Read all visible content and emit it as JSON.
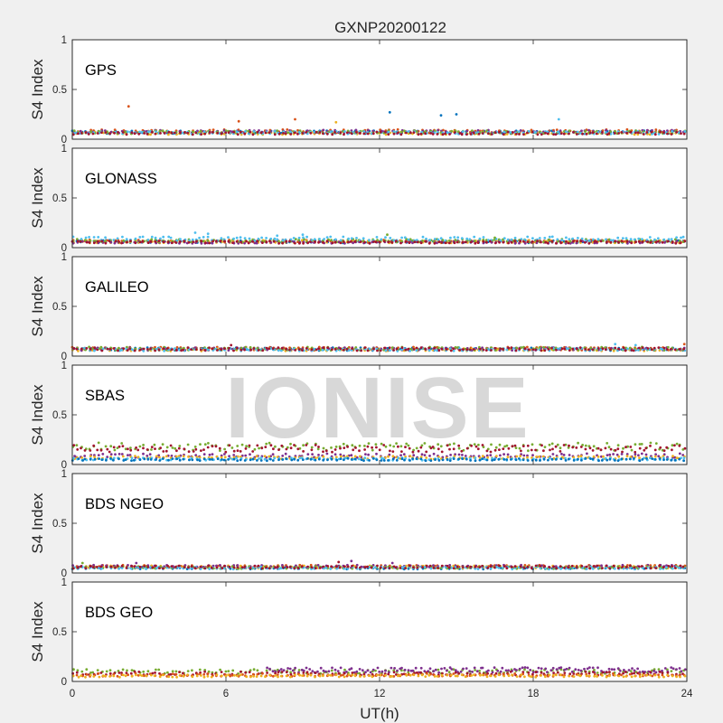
{
  "figure": {
    "title": "GXNP20200122",
    "xlabel": "UT(h)",
    "watermark": "IONISE",
    "background": "#f0f0f0"
  },
  "chart_data": [
    {
      "type": "scatter",
      "label": "GPS",
      "ylabel": "S4 Index",
      "xlim": [
        0,
        24
      ],
      "ylim": [
        0,
        1
      ],
      "xticks": [
        0,
        6,
        12,
        18,
        24
      ],
      "yticks": [
        0,
        0.5,
        1
      ],
      "series": [
        {
          "color": "#0072bd",
          "base": 0.07
        },
        {
          "color": "#d95319",
          "base": 0.08
        },
        {
          "color": "#edb120",
          "base": 0.06
        },
        {
          "color": "#7e2f8e",
          "base": 0.075
        },
        {
          "color": "#77ac30",
          "base": 0.07
        },
        {
          "color": "#4dbeee",
          "base": 0.065
        },
        {
          "color": "#a2142f",
          "base": 0.06
        }
      ],
      "outliers": [
        [
          2.2,
          0.33,
          "#d95319"
        ],
        [
          8.7,
          0.2,
          "#d95319"
        ],
        [
          12.4,
          0.27,
          "#0072bd"
        ],
        [
          14.4,
          0.24,
          "#0072bd"
        ],
        [
          15.0,
          0.25,
          "#0072bd"
        ],
        [
          19.0,
          0.2,
          "#4dbeee"
        ],
        [
          6.5,
          0.18,
          "#d95319"
        ],
        [
          10.3,
          0.17,
          "#edb120"
        ]
      ]
    },
    {
      "type": "scatter",
      "label": "GLONASS",
      "ylabel": "S4 Index",
      "xlim": [
        0,
        24
      ],
      "ylim": [
        0,
        1
      ],
      "xticks": [
        0,
        6,
        12,
        18,
        24
      ],
      "yticks": [
        0,
        0.5,
        1
      ],
      "series": [
        {
          "color": "#0072bd",
          "base": 0.06
        },
        {
          "color": "#d95319",
          "base": 0.065
        },
        {
          "color": "#edb120",
          "base": 0.06
        },
        {
          "color": "#7e2f8e",
          "base": 0.055
        },
        {
          "color": "#77ac30",
          "base": 0.07
        },
        {
          "color": "#4dbeee",
          "base": 0.09
        },
        {
          "color": "#a2142f",
          "base": 0.055
        }
      ],
      "outliers": [
        [
          4.8,
          0.15,
          "#4dbeee"
        ],
        [
          5.3,
          0.14,
          "#4dbeee"
        ],
        [
          8.0,
          0.12,
          "#4dbeee"
        ],
        [
          9.0,
          0.13,
          "#4dbeee"
        ],
        [
          12.3,
          0.13,
          "#77ac30"
        ],
        [
          16.5,
          0.1,
          "#77ac30"
        ]
      ]
    },
    {
      "type": "scatter",
      "label": "GALILEO",
      "ylabel": "S4 Index",
      "xlim": [
        0,
        24
      ],
      "ylim": [
        0,
        1
      ],
      "xticks": [
        0,
        6,
        12,
        18,
        24
      ],
      "yticks": [
        0,
        0.5,
        1
      ],
      "series": [
        {
          "color": "#0072bd",
          "base": 0.07
        },
        {
          "color": "#d95319",
          "base": 0.075
        },
        {
          "color": "#edb120",
          "base": 0.065
        },
        {
          "color": "#7e2f8e",
          "base": 0.07
        },
        {
          "color": "#77ac30",
          "base": 0.075
        },
        {
          "color": "#4dbeee",
          "base": 0.065
        },
        {
          "color": "#a2142f",
          "base": 0.07
        }
      ],
      "outliers": [
        [
          21.2,
          0.12,
          "#4dbeee"
        ],
        [
          22.0,
          0.11,
          "#4dbeee"
        ],
        [
          23.9,
          0.12,
          "#d95319"
        ],
        [
          6.2,
          0.11,
          "#a2142f"
        ]
      ]
    },
    {
      "type": "scatter",
      "label": "SBAS",
      "ylabel": "S4 Index",
      "xlim": [
        0,
        24
      ],
      "ylim": [
        0,
        1
      ],
      "xticks": [
        0,
        6,
        12,
        18,
        24
      ],
      "yticks": [
        0,
        0.5,
        1
      ],
      "series": [
        {
          "color": "#77ac30",
          "base": 0.18
        },
        {
          "color": "#a2142f",
          "base": 0.16
        },
        {
          "color": "#7e2f8e",
          "base": 0.09
        },
        {
          "color": "#edb120",
          "base": 0.07
        },
        {
          "color": "#4dbeee",
          "base": 0.055
        },
        {
          "color": "#0072bd",
          "base": 0.05
        }
      ],
      "outliers": []
    },
    {
      "type": "scatter",
      "label": "BDS NGEO",
      "ylabel": "S4 Index",
      "xlim": [
        0,
        24
      ],
      "ylim": [
        0,
        1
      ],
      "xticks": [
        0,
        6,
        12,
        18,
        24
      ],
      "yticks": [
        0,
        0.5,
        1
      ],
      "series": [
        {
          "color": "#0072bd",
          "base": 0.05
        },
        {
          "color": "#d95319",
          "base": 0.065
        },
        {
          "color": "#edb120",
          "base": 0.06
        },
        {
          "color": "#7e2f8e",
          "base": 0.065
        },
        {
          "color": "#77ac30",
          "base": 0.055
        },
        {
          "color": "#4dbeee",
          "base": 0.05
        },
        {
          "color": "#a2142f",
          "base": 0.06
        }
      ],
      "outliers": [
        [
          10.4,
          0.11,
          "#a2142f"
        ],
        [
          10.9,
          0.12,
          "#7e2f8e"
        ],
        [
          12.5,
          0.1,
          "#7e2f8e"
        ],
        [
          2.5,
          0.1,
          "#7e2f8e"
        ],
        [
          0.4,
          0.1,
          "#77ac30"
        ]
      ]
    },
    {
      "type": "scatter",
      "label": "BDS GEO",
      "ylabel": "S4 Index",
      "xlim": [
        0,
        24
      ],
      "ylim": [
        0,
        1
      ],
      "xticks": [
        0,
        6,
        12,
        18,
        24
      ],
      "yticks": [
        0,
        0.5,
        1
      ],
      "series": [
        {
          "color": "#77ac30",
          "base": 0.1
        },
        {
          "color": "#7e2f8e",
          "base": 0.115,
          "x_start": 7.6
        },
        {
          "color": "#a2142f",
          "base": 0.08
        },
        {
          "color": "#d95319",
          "base": 0.065
        },
        {
          "color": "#edb120",
          "base": 0.055
        }
      ],
      "outliers": []
    }
  ]
}
